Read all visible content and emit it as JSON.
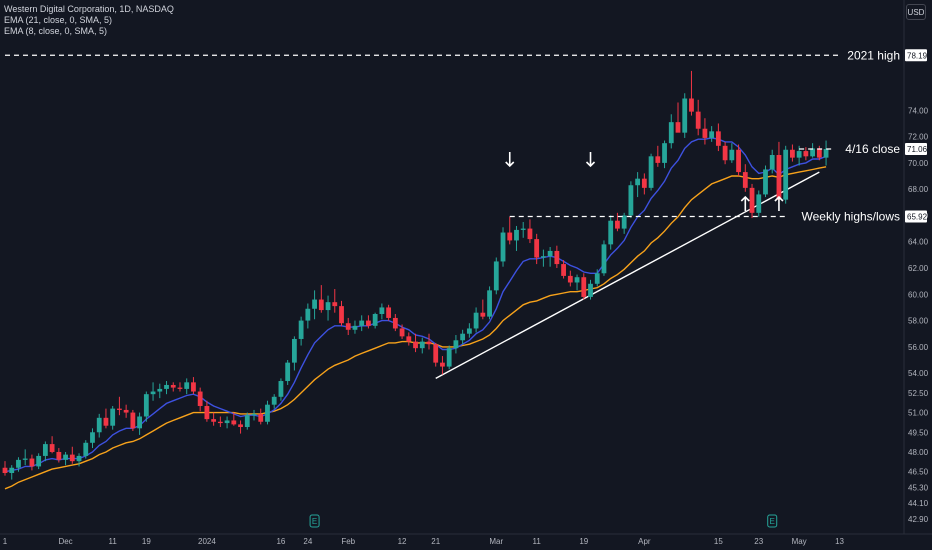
{
  "header": {
    "symbol_line": "Western Digital Corporation, 1D, NASDAQ",
    "ema21_line": "EMA (21, close, 0, SMA, 5)",
    "ema8_line": "EMA (8, close, 0, SMA, 5)",
    "currency_button": "USD"
  },
  "colors": {
    "background": "#131722",
    "bull": "#26a69a",
    "bear": "#f23645",
    "ema21": "#f7a21b",
    "ema8": "#3d51e0",
    "trendline": "#ffffff",
    "text": "#b2b5be"
  },
  "chart_data": {
    "type": "candlestick",
    "y_axis": {
      "min": 42.9,
      "max": 79.2,
      "ticks": [
        42.9,
        44.1,
        45.3,
        46.5,
        48.0,
        49.5,
        51.0,
        52.5,
        54.0,
        56.0,
        58.0,
        60.0,
        62.0,
        64.0,
        66.0,
        68.0,
        70.0,
        72.0,
        74.0
      ],
      "tick_labels": [
        "42.90",
        "44.10",
        "45.30",
        "46.50",
        "48.00",
        "49.50",
        "51.00",
        "52.50",
        "54.00",
        "56.00",
        "58.00",
        "60.00",
        "62.00",
        "64.00",
        "66.00",
        "68.00",
        "70.00",
        "72.00",
        "74.00"
      ],
      "price_labels": [
        {
          "value": 78.19,
          "text": "78.19"
        },
        {
          "value": 71.06,
          "text": "71.06"
        },
        {
          "value": 65.92,
          "text": "65.92"
        }
      ]
    },
    "x_axis": {
      "labels": [
        {
          "index": 0,
          "text": "1"
        },
        {
          "index": 9,
          "text": "Dec"
        },
        {
          "index": 16,
          "text": "11"
        },
        {
          "index": 21,
          "text": "19"
        },
        {
          "index": 30,
          "text": "2024"
        },
        {
          "index": 41,
          "text": "16"
        },
        {
          "index": 45,
          "text": "24"
        },
        {
          "index": 51,
          "text": "Feb"
        },
        {
          "index": 59,
          "text": "12"
        },
        {
          "index": 64,
          "text": "21"
        },
        {
          "index": 73,
          "text": "Mar"
        },
        {
          "index": 79,
          "text": "11"
        },
        {
          "index": 86,
          "text": "19"
        },
        {
          "index": 95,
          "text": "Apr"
        },
        {
          "index": 106,
          "text": "15"
        },
        {
          "index": 112,
          "text": "23"
        },
        {
          "index": 118,
          "text": "May"
        },
        {
          "index": 124,
          "text": "13"
        }
      ]
    },
    "candles": [
      [
        46.8,
        47.3,
        46.2,
        46.4
      ],
      [
        46.4,
        47.0,
        45.9,
        46.8
      ],
      [
        46.8,
        47.6,
        46.5,
        47.4
      ],
      [
        47.4,
        48.2,
        47.0,
        47.5
      ],
      [
        47.5,
        47.8,
        46.6,
        46.9
      ],
      [
        46.9,
        47.9,
        46.7,
        47.7
      ],
      [
        47.7,
        48.8,
        47.3,
        48.6
      ],
      [
        48.6,
        49.2,
        47.9,
        48.0
      ],
      [
        48.0,
        48.3,
        47.2,
        47.4
      ],
      [
        47.4,
        48.0,
        47.0,
        47.8
      ],
      [
        47.8,
        48.4,
        47.1,
        47.3
      ],
      [
        47.3,
        47.9,
        46.9,
        47.7
      ],
      [
        47.7,
        48.9,
        47.5,
        48.7
      ],
      [
        48.7,
        49.8,
        48.3,
        49.5
      ],
      [
        49.5,
        50.9,
        49.1,
        50.6
      ],
      [
        50.6,
        51.3,
        49.8,
        50.0
      ],
      [
        50.0,
        51.5,
        49.7,
        51.3
      ],
      [
        51.3,
        52.2,
        50.8,
        51.2
      ],
      [
        51.2,
        51.6,
        50.6,
        51.0
      ],
      [
        51.0,
        51.2,
        49.6,
        49.8
      ],
      [
        49.8,
        51.0,
        49.3,
        50.7
      ],
      [
        50.7,
        52.6,
        50.3,
        52.4
      ],
      [
        52.4,
        53.3,
        51.9,
        52.6
      ],
      [
        52.6,
        53.2,
        52.1,
        52.8
      ],
      [
        52.8,
        53.4,
        52.4,
        53.1
      ],
      [
        53.1,
        53.3,
        52.6,
        52.9
      ],
      [
        52.9,
        53.3,
        52.6,
        52.8
      ],
      [
        52.8,
        53.6,
        52.4,
        53.3
      ],
      [
        53.3,
        53.7,
        52.4,
        52.6
      ],
      [
        52.6,
        52.9,
        51.1,
        51.5
      ],
      [
        51.5,
        51.9,
        50.3,
        50.5
      ],
      [
        50.5,
        51.0,
        50.0,
        50.3
      ],
      [
        50.3,
        50.7,
        49.9,
        50.2
      ],
      [
        50.2,
        50.7,
        49.8,
        50.4
      ],
      [
        50.4,
        51.0,
        50.0,
        50.1
      ],
      [
        50.1,
        50.4,
        49.4,
        49.9
      ],
      [
        49.9,
        51.0,
        49.7,
        50.8
      ],
      [
        50.8,
        51.2,
        50.4,
        50.9
      ],
      [
        50.9,
        51.3,
        50.1,
        50.3
      ],
      [
        50.3,
        51.9,
        50.1,
        51.6
      ],
      [
        51.6,
        52.4,
        51.3,
        52.2
      ],
      [
        52.2,
        53.6,
        51.9,
        53.4
      ],
      [
        53.4,
        55.0,
        53.1,
        54.8
      ],
      [
        54.8,
        56.8,
        54.2,
        56.6
      ],
      [
        56.6,
        58.3,
        56.1,
        58.0
      ],
      [
        58.0,
        59.3,
        57.4,
        58.9
      ],
      [
        58.9,
        60.3,
        58.1,
        59.6
      ],
      [
        59.6,
        60.7,
        58.6,
        58.8
      ],
      [
        58.8,
        59.9,
        58.0,
        59.4
      ],
      [
        59.4,
        60.4,
        58.6,
        59.1
      ],
      [
        59.1,
        59.5,
        57.6,
        57.8
      ],
      [
        57.8,
        58.2,
        56.9,
        57.3
      ],
      [
        57.3,
        58.0,
        57.0,
        57.6
      ],
      [
        57.6,
        58.4,
        57.2,
        58.0
      ],
      [
        58.0,
        58.4,
        57.4,
        57.6
      ],
      [
        57.6,
        58.6,
        57.4,
        58.5
      ],
      [
        58.5,
        59.3,
        58.1,
        59.0
      ],
      [
        59.0,
        59.2,
        58.0,
        58.2
      ],
      [
        58.2,
        58.5,
        57.2,
        57.4
      ],
      [
        57.4,
        57.7,
        56.6,
        56.8
      ],
      [
        56.8,
        57.1,
        56.1,
        56.4
      ],
      [
        56.4,
        57.0,
        55.6,
        55.9
      ],
      [
        55.9,
        56.7,
        55.5,
        56.4
      ],
      [
        56.4,
        57.0,
        55.8,
        56.2
      ],
      [
        56.2,
        56.3,
        54.5,
        54.8
      ],
      [
        54.8,
        55.3,
        53.9,
        54.5
      ],
      [
        54.5,
        56.1,
        54.3,
        55.9
      ],
      [
        55.9,
        56.9,
        55.5,
        56.5
      ],
      [
        56.5,
        57.3,
        56.2,
        57.0
      ],
      [
        57.0,
        57.8,
        56.7,
        57.4
      ],
      [
        57.4,
        59.0,
        57.1,
        58.6
      ],
      [
        58.6,
        59.6,
        58.1,
        58.3
      ],
      [
        58.3,
        60.6,
        58.1,
        60.3
      ],
      [
        60.3,
        62.8,
        60.0,
        62.5
      ],
      [
        62.5,
        65.1,
        62.1,
        64.7
      ],
      [
        64.7,
        65.9,
        63.8,
        64.1
      ],
      [
        64.1,
        65.2,
        63.3,
        64.9
      ],
      [
        64.9,
        65.5,
        64.3,
        65.0
      ],
      [
        65.0,
        65.7,
        63.9,
        64.2
      ],
      [
        64.2,
        64.6,
        62.3,
        62.8
      ],
      [
        62.8,
        63.4,
        62.1,
        62.9
      ],
      [
        62.9,
        63.6,
        62.1,
        63.3
      ],
      [
        63.3,
        63.7,
        62.0,
        62.3
      ],
      [
        62.3,
        62.6,
        61.2,
        61.4
      ],
      [
        61.4,
        61.8,
        60.6,
        60.9
      ],
      [
        60.9,
        61.5,
        60.3,
        61.3
      ],
      [
        61.3,
        61.6,
        59.6,
        59.8
      ],
      [
        59.8,
        61.1,
        59.6,
        60.8
      ],
      [
        60.8,
        61.9,
        60.6,
        61.6
      ],
      [
        61.6,
        64.1,
        61.4,
        63.8
      ],
      [
        63.8,
        66.0,
        63.4,
        65.6
      ],
      [
        65.6,
        66.2,
        64.8,
        65.0
      ],
      [
        65.0,
        66.2,
        64.6,
        66.0
      ],
      [
        66.0,
        68.6,
        65.8,
        68.3
      ],
      [
        68.3,
        69.3,
        67.4,
        68.8
      ],
      [
        68.8,
        69.2,
        67.6,
        68.1
      ],
      [
        68.1,
        70.7,
        67.9,
        70.5
      ],
      [
        70.5,
        71.3,
        69.7,
        70.0
      ],
      [
        70.0,
        71.7,
        69.6,
        71.5
      ],
      [
        71.5,
        73.7,
        71.1,
        73.1
      ],
      [
        73.1,
        74.6,
        72.4,
        72.3
      ],
      [
        72.3,
        75.3,
        71.9,
        74.9
      ],
      [
        74.9,
        77.0,
        73.6,
        73.9
      ],
      [
        73.9,
        74.8,
        72.1,
        72.6
      ],
      [
        72.6,
        73.4,
        71.4,
        71.9
      ],
      [
        71.9,
        72.8,
        71.6,
        72.4
      ],
      [
        72.4,
        73.0,
        70.9,
        71.3
      ],
      [
        71.3,
        71.6,
        69.9,
        70.2
      ],
      [
        70.2,
        71.5,
        70.0,
        71.0
      ],
      [
        71.0,
        71.4,
        69.0,
        69.3
      ],
      [
        69.3,
        69.9,
        67.8,
        68.1
      ],
      [
        68.1,
        68.4,
        65.8,
        66.2
      ],
      [
        66.2,
        67.9,
        65.9,
        67.6
      ],
      [
        67.6,
        69.8,
        67.4,
        69.5
      ],
      [
        69.5,
        71.0,
        69.2,
        70.6
      ],
      [
        70.6,
        71.6,
        66.8,
        67.2
      ],
      [
        67.2,
        71.3,
        66.9,
        71.0
      ],
      [
        71.0,
        71.4,
        70.1,
        70.4
      ],
      [
        70.4,
        71.3,
        69.8,
        70.9
      ],
      [
        70.9,
        71.2,
        70.2,
        70.5
      ],
      [
        70.5,
        71.5,
        70.4,
        71.1
      ],
      [
        71.1,
        71.3,
        70.2,
        70.4
      ],
      [
        70.4,
        71.7,
        69.8,
        71.06
      ]
    ],
    "ema21": [
      45.2,
      45.4,
      45.7,
      45.9,
      46.1,
      46.3,
      46.5,
      46.7,
      46.8,
      46.9,
      47.0,
      47.1,
      47.3,
      47.5,
      47.8,
      48.0,
      48.3,
      48.5,
      48.7,
      48.8,
      49.0,
      49.3,
      49.6,
      49.9,
      50.2,
      50.4,
      50.6,
      50.8,
      51.0,
      51.0,
      51.0,
      51.0,
      51.0,
      51.0,
      51.0,
      50.9,
      50.9,
      50.9,
      50.9,
      51.0,
      51.1,
      51.3,
      51.6,
      52.0,
      52.5,
      53.0,
      53.5,
      53.9,
      54.3,
      54.6,
      54.8,
      55.0,
      55.3,
      55.5,
      55.7,
      55.9,
      56.1,
      56.3,
      56.3,
      56.4,
      56.4,
      56.3,
      56.3,
      56.3,
      56.2,
      56.0,
      56.0,
      56.0,
      56.1,
      56.2,
      56.4,
      56.6,
      56.9,
      57.4,
      58.0,
      58.4,
      58.8,
      59.2,
      59.4,
      59.5,
      59.7,
      59.9,
      60.0,
      60.1,
      60.2,
      60.2,
      60.3,
      60.4,
      60.5,
      60.8,
      61.2,
      61.5,
      61.9,
      62.4,
      62.9,
      63.3,
      63.9,
      64.3,
      64.8,
      65.4,
      65.9,
      66.6,
      67.2,
      67.6,
      68.0,
      68.4,
      68.6,
      68.8,
      69.0,
      69.0,
      68.9,
      68.8,
      68.8,
      68.9,
      69.0,
      68.9,
      69.1,
      69.2,
      69.3,
      69.4,
      69.5,
      69.6,
      69.7
    ],
    "ema8": [
      46.5,
      46.6,
      46.7,
      46.9,
      46.9,
      47.1,
      47.4,
      47.5,
      47.4,
      47.5,
      47.5,
      47.5,
      47.7,
      48.0,
      48.5,
      48.8,
      49.3,
      49.6,
      49.8,
      49.8,
      50.0,
      50.5,
      50.9,
      51.3,
      51.7,
      51.9,
      52.1,
      52.3,
      52.4,
      52.2,
      51.8,
      51.5,
      51.3,
      51.1,
      50.9,
      50.7,
      50.8,
      50.8,
      50.7,
      50.9,
      51.2,
      51.7,
      52.4,
      53.3,
      54.4,
      55.4,
      56.3,
      56.8,
      57.3,
      57.6,
      57.6,
      57.5,
      57.5,
      57.6,
      57.6,
      57.8,
      58.0,
      58.0,
      57.8,
      57.5,
      57.3,
      56.9,
      56.8,
      56.6,
      56.2,
      55.8,
      55.8,
      55.9,
      56.2,
      56.5,
      57.0,
      57.3,
      57.9,
      58.9,
      60.2,
      61.0,
      61.8,
      62.5,
      62.7,
      62.7,
      62.8,
      62.9,
      62.8,
      62.5,
      62.2,
      62.0,
      61.7,
      61.6,
      61.6,
      62.3,
      63.0,
      63.5,
      64.1,
      65.1,
      65.9,
      66.4,
      67.3,
      67.9,
      68.6,
      69.6,
      70.2,
      71.1,
      71.6,
      71.8,
      71.8,
      71.9,
      71.8,
      71.6,
      71.6,
      71.2,
      70.6,
      69.7,
      69.2,
      69.3,
      69.6,
      69.1,
      69.5,
      69.7,
      69.9,
      70.0,
      70.3,
      70.3,
      70.5
    ],
    "levels": [
      {
        "value": 78.19,
        "label": "2021 high",
        "x_from_index": 0
      },
      {
        "value": 71.06,
        "label": "4/16 close",
        "x_from_index": 118
      },
      {
        "value": 65.92,
        "label": "Weekly highs/lows",
        "x_from_index": 75
      }
    ],
    "trendline": {
      "from": {
        "index": 64,
        "value": 53.6
      },
      "to": {
        "index": 121,
        "value": 69.3
      }
    },
    "arrows": [
      {
        "index": 75,
        "dir": "down"
      },
      {
        "index": 87,
        "dir": "down"
      },
      {
        "index": 110,
        "dir": "up"
      },
      {
        "index": 115,
        "dir": "up"
      }
    ],
    "earnings_markers": [
      {
        "index": 46,
        "text": "E"
      },
      {
        "index": 114,
        "text": "E"
      }
    ]
  }
}
